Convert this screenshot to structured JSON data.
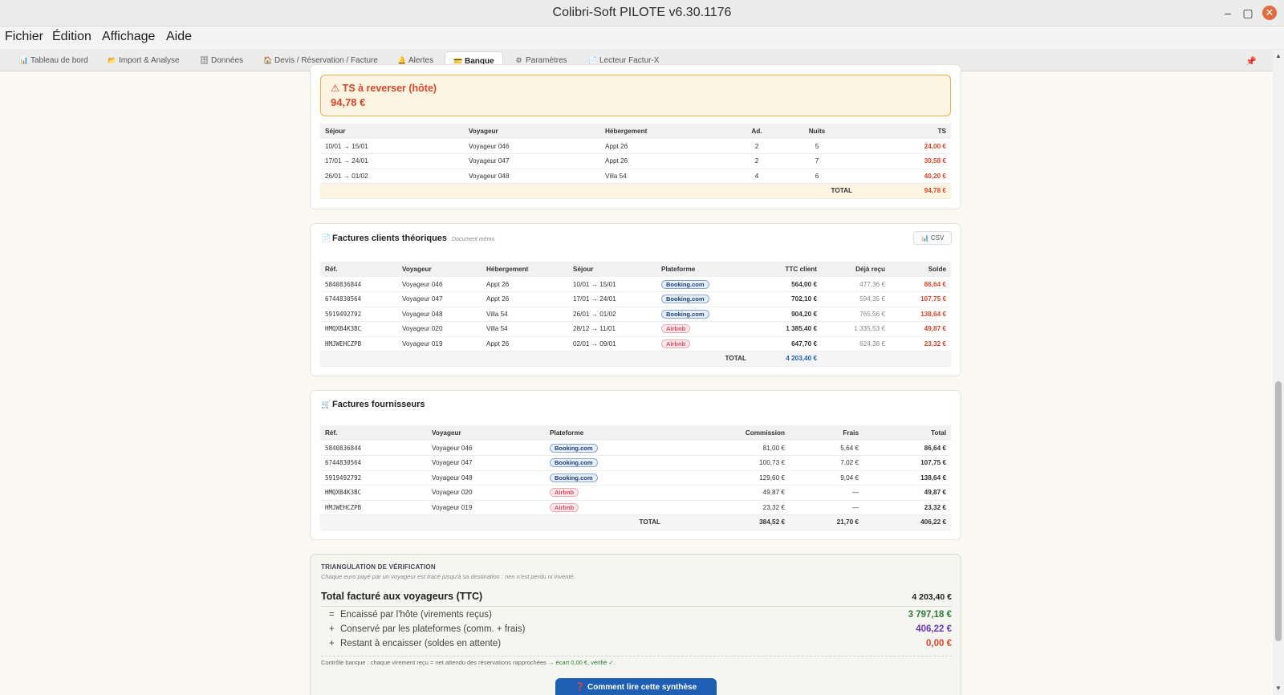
{
  "window": {
    "title": "Colibri-Soft PILOTE v6.30.1176",
    "minimize": "–",
    "maximize": "▢",
    "close": "✕"
  },
  "menu": [
    "Fichier",
    "Édition",
    "Affichage",
    "Aide"
  ],
  "tabs": [
    {
      "icon": "📊",
      "label": "Tableau de bord"
    },
    {
      "icon": "📂",
      "label": "Import & Analyse"
    },
    {
      "icon": "🗄",
      "label": "Données"
    },
    {
      "icon": "🏠",
      "label": "Devis / Réservation / Facture"
    },
    {
      "icon": "🔔",
      "label": "Alertes"
    },
    {
      "icon": "💳",
      "label": "Banque",
      "active": true
    },
    {
      "icon": "⚙",
      "label": "Paramètres"
    },
    {
      "icon": "📄",
      "label": "Lecteur Factur-X"
    }
  ],
  "ts_alert": {
    "title": "⚠ TS à reverser (hôte)",
    "amount": "94,78 €"
  },
  "ts_table": {
    "headers": [
      "Séjour",
      "Voyageur",
      "Hébergement",
      "Ad.",
      "Nuits",
      "TS"
    ],
    "rows": [
      [
        "10/01 → 15/01",
        "Voyageur 046",
        "Appt 26",
        "2",
        "5",
        "24,00 €"
      ],
      [
        "17/01 → 24/01",
        "Voyageur 047",
        "Appt 26",
        "2",
        "7",
        "30,58 €"
      ],
      [
        "26/01 → 01/02",
        "Voyageur 048",
        "Villa 54",
        "4",
        "6",
        "40,20 €"
      ]
    ],
    "total_label": "TOTAL",
    "total_value": "94,78 €"
  },
  "clients": {
    "title": "Factures clients théoriques",
    "memo": "Document mémo",
    "csv_label": "CSV",
    "headers": [
      "Réf.",
      "Voyageur",
      "Hébergement",
      "Séjour",
      "Plateforme",
      "TTC client",
      "Déjà reçu",
      "Solde"
    ],
    "rows": [
      [
        "5840836844",
        "Voyageur 046",
        "Appt 26",
        "10/01 → 15/01",
        "Booking.com",
        "564,00 €",
        "477,36 €",
        "86,64 €"
      ],
      [
        "6744830564",
        "Voyageur 047",
        "Appt 26",
        "17/01 → 24/01",
        "Booking.com",
        "702,10 €",
        "594,35 €",
        "107,75 €"
      ],
      [
        "5919492792",
        "Voyageur 048",
        "Villa 54",
        "26/01 → 01/02",
        "Booking.com",
        "904,20 €",
        "765,56 €",
        "138,64 €"
      ],
      [
        "HMQXB4K3BC",
        "Voyageur 020",
        "Villa 54",
        "28/12 → 11/01",
        "Airbnb",
        "1 385,40 €",
        "1 335,53 €",
        "49,87 €"
      ],
      [
        "HMJWEHCZPB",
        "Voyageur 019",
        "Appt 26",
        "02/01 → 09/01",
        "Airbnb",
        "647,70 €",
        "624,38 €",
        "23,32 €"
      ]
    ],
    "total_label": "TOTAL",
    "total_value": "4 203,40 €"
  },
  "suppliers": {
    "title": "Factures fournisseurs",
    "headers": [
      "Réf.",
      "Voyageur",
      "Plateforme",
      "Commission",
      "Frais",
      "Total"
    ],
    "rows": [
      [
        "5840836844",
        "Voyageur 046",
        "Booking.com",
        "81,00 €",
        "5,64 €",
        "86,64 €"
      ],
      [
        "6744830564",
        "Voyageur 047",
        "Booking.com",
        "100,73 €",
        "7,02 €",
        "107,75 €"
      ],
      [
        "5919492792",
        "Voyageur 048",
        "Booking.com",
        "129,60 €",
        "9,04 €",
        "138,64 €"
      ],
      [
        "HMQXB4K3BC",
        "Voyageur 020",
        "Airbnb",
        "49,87 €",
        "—",
        "49,87 €"
      ],
      [
        "HMJWEHCZPB",
        "Voyageur 019",
        "Airbnb",
        "23,32 €",
        "—",
        "23,32 €"
      ]
    ],
    "total_label": "TOTAL",
    "total_commission": "384,52 €",
    "total_frais": "21,70 €",
    "total_total": "406,22 €"
  },
  "triangulation": {
    "heading": "TRIANGULATION DE VÉRIFICATION",
    "subtitle": "Chaque euro payé par un voyageur est tracé jusqu'à sa destination : rien n'est perdu ni inventé.",
    "main_label": "Total facturé aux voyageurs (TTC)",
    "main_value": "4 203,40 €",
    "lines": [
      {
        "op": "=",
        "label": "Encaissé par l'hôte (virements reçus)",
        "value": "3 797,18 €",
        "color": "#2e7d32"
      },
      {
        "op": "+",
        "label": "Conservé par les plateformes (comm. + frais)",
        "value": "406,22 €",
        "color": "#6a35b5"
      },
      {
        "op": "+",
        "label": "Restant à encaisser (soldes en attente)",
        "value": "0,00 €",
        "color": "#d8462a"
      }
    ],
    "note": "Contrôle banque : chaque virement reçu = net attendu des réservations rapprochées →",
    "note_ok": "écart 0,00 €, vérifié ✓.",
    "help_button": "❓ Comment lire cette synthèse"
  },
  "colors": {
    "accent": "#1e5fb4",
    "alert_red": "#d8462a",
    "booking": "#1d3f78",
    "airbnb": "#dc4b61"
  }
}
